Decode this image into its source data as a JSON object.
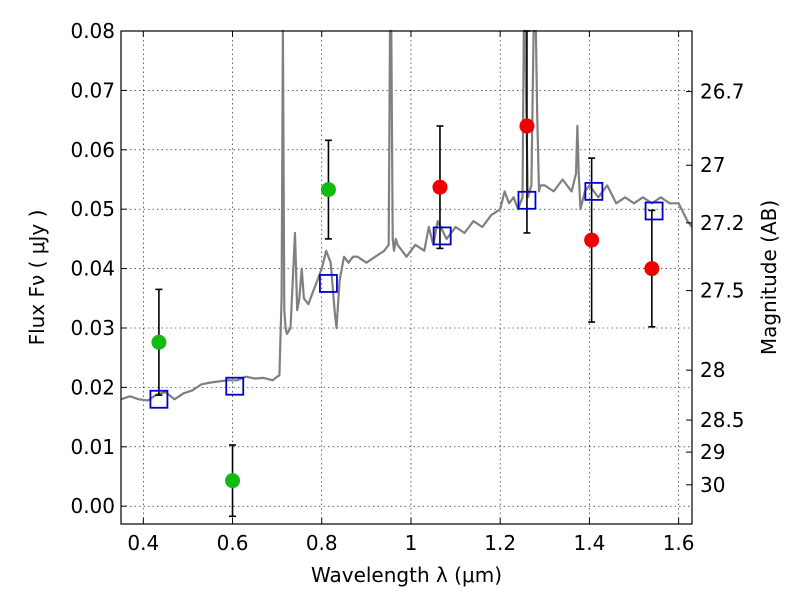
{
  "chart_data": {
    "type": "scatter",
    "xlabel": "Wavelength  λ (μm)",
    "ylabel": "Flux  Fν  ( μJy )",
    "y2label": "Magnitude (AB)",
    "xlim": [
      0.35,
      1.63
    ],
    "ylim": [
      -0.003,
      0.08
    ],
    "grid": true,
    "x_ticks": [
      0.4,
      0.6,
      0.8,
      1.0,
      1.2,
      1.4,
      1.6
    ],
    "x_tick_labels": [
      "0.4",
      "0.6",
      "0.8",
      "1",
      "1.2",
      "1.4",
      "1.6"
    ],
    "y_ticks": [
      0.0,
      0.01,
      0.02,
      0.03,
      0.04,
      0.05,
      0.06,
      0.07,
      0.08
    ],
    "y_tick_labels": [
      "0.00",
      "0.01",
      "0.02",
      "0.03",
      "0.04",
      "0.05",
      "0.06",
      "0.07",
      "0.08"
    ],
    "y2_ticks": [
      {
        "flux": 0.0698,
        "label": "26.7"
      },
      {
        "flux": 0.0574,
        "label": "27"
      },
      {
        "flux": 0.0477,
        "label": "27.2"
      },
      {
        "flux": 0.0363,
        "label": "27.5"
      },
      {
        "flux": 0.0229,
        "label": "28"
      },
      {
        "flux": 0.0145,
        "label": "28.5"
      },
      {
        "flux": 0.0091,
        "label": "29"
      },
      {
        "flux": 0.0036,
        "label": "30"
      }
    ],
    "series": [
      {
        "kind": "spectrum",
        "color": "#808080",
        "x": [
          0.35,
          0.37,
          0.39,
          0.41,
          0.43,
          0.44,
          0.45,
          0.47,
          0.49,
          0.51,
          0.53,
          0.55,
          0.57,
          0.59,
          0.61,
          0.63,
          0.65,
          0.67,
          0.69,
          0.7,
          0.705,
          0.71,
          0.713,
          0.716,
          0.719,
          0.722,
          0.73,
          0.74,
          0.745,
          0.75,
          0.755,
          0.76,
          0.77,
          0.78,
          0.79,
          0.8,
          0.81,
          0.82,
          0.83,
          0.833,
          0.84,
          0.85,
          0.86,
          0.87,
          0.88,
          0.9,
          0.92,
          0.94,
          0.95,
          0.953,
          0.956,
          0.959,
          0.962,
          0.966,
          0.97,
          0.99,
          1.01,
          1.03,
          1.04,
          1.05,
          1.06,
          1.08,
          1.1,
          1.12,
          1.14,
          1.16,
          1.18,
          1.2,
          1.21,
          1.22,
          1.23,
          1.24,
          1.25,
          1.253,
          1.256,
          1.259,
          1.262,
          1.266,
          1.27,
          1.275,
          1.28,
          1.283,
          1.287,
          1.29,
          1.3,
          1.32,
          1.34,
          1.36,
          1.37,
          1.373,
          1.376,
          1.38,
          1.39,
          1.4,
          1.42,
          1.44,
          1.46,
          1.48,
          1.5,
          1.52,
          1.54,
          1.56,
          1.58,
          1.6,
          1.62,
          1.63
        ],
        "y": [
          0.018,
          0.0185,
          0.018,
          0.0178,
          0.0188,
          0.019,
          0.0192,
          0.018,
          0.019,
          0.0195,
          0.0205,
          0.0208,
          0.021,
          0.0212,
          0.0212,
          0.0218,
          0.0215,
          0.0216,
          0.0212,
          0.0218,
          0.022,
          0.035,
          0.08,
          0.033,
          0.03,
          0.029,
          0.03,
          0.046,
          0.033,
          0.035,
          0.04,
          0.035,
          0.034,
          0.036,
          0.038,
          0.04,
          0.043,
          0.041,
          0.032,
          0.03,
          0.038,
          0.042,
          0.041,
          0.042,
          0.042,
          0.041,
          0.042,
          0.043,
          0.044,
          0.08,
          0.08,
          0.045,
          0.043,
          0.045,
          0.044,
          0.042,
          0.044,
          0.043,
          0.047,
          0.044,
          0.048,
          0.045,
          0.047,
          0.046,
          0.048,
          0.047,
          0.049,
          0.05,
          0.053,
          0.051,
          0.052,
          0.05,
          0.052,
          0.08,
          0.08,
          0.065,
          0.052,
          0.053,
          0.054,
          0.08,
          0.08,
          0.066,
          0.053,
          0.054,
          0.054,
          0.053,
          0.055,
          0.053,
          0.056,
          0.064,
          0.056,
          0.05,
          0.053,
          0.054,
          0.052,
          0.054,
          0.051,
          0.052,
          0.051,
          0.052,
          0.051,
          0.052,
          0.051,
          0.051,
          0.048,
          0.047
        ]
      },
      {
        "kind": "model",
        "marker": "square",
        "color": "#0000cc",
        "x": [
          0.435,
          0.605,
          0.815,
          1.07,
          1.26,
          1.41,
          1.545
        ],
        "y": [
          0.018,
          0.0202,
          0.0375,
          0.0455,
          0.0515,
          0.053,
          0.0497
        ]
      },
      {
        "kind": "observed",
        "marker": "circle",
        "color": "#11bb11",
        "x": [
          0.435,
          0.6,
          0.815
        ],
        "y": [
          0.0276,
          0.0043,
          0.0533
        ],
        "yerr": [
          0.0089,
          0.006,
          0.0083
        ]
      },
      {
        "kind": "observed",
        "marker": "circle",
        "color": "#ee0000",
        "x": [
          1.065,
          1.26,
          1.405,
          1.54
        ],
        "y": [
          0.0537,
          0.064,
          0.0448,
          0.04
        ],
        "yerr": [
          0.0103,
          0.018,
          0.0138,
          0.0098
        ]
      }
    ]
  }
}
